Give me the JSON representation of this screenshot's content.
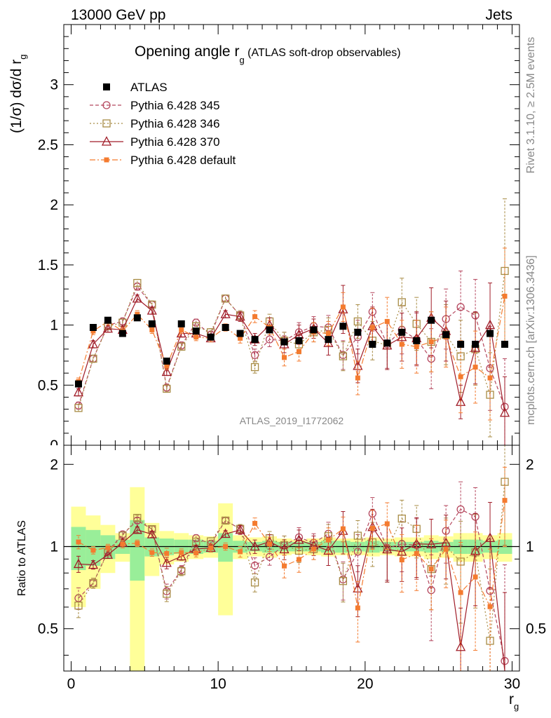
{
  "header": {
    "left": "13000 GeV pp",
    "right": "Jets"
  },
  "side": {
    "rivet": "Rivet 3.1.10, ≥ 2.5M events",
    "mcplots": "mcplots.cern.ch [arXiv:1306.3436]"
  },
  "top_panel": {
    "title_main": "Opening angle r",
    "title_sub": "g",
    "title_rest": " (ATLAS soft-drop observables)",
    "ylabel": "(1/σ) dσ/d r",
    "ylabel_sub": "g",
    "analysis_id": "ATLAS_2019_I1772062"
  },
  "bottom_panel": {
    "ylabel": "Ratio to ATLAS"
  },
  "xaxis": {
    "label": "r",
    "label_sub": "g"
  },
  "colors": {
    "atlas": "#000000",
    "p345": "#b5475e",
    "p346": "#a88c45",
    "p370": "#a01c28",
    "pdef": "#f47b2f",
    "band_yellow": "#ffff99",
    "band_green": "#99ee99"
  },
  "chart_data": {
    "type": "line",
    "x": [
      0.5,
      1.5,
      2.5,
      3.5,
      4.5,
      5.5,
      6.5,
      7.5,
      8.5,
      9.5,
      10.5,
      11.5,
      12.5,
      13.5,
      14.5,
      15.5,
      16.5,
      17.5,
      18.5,
      19.5,
      20.5,
      21.5,
      22.5,
      23.5,
      24.5,
      25.5,
      26.5,
      27.5,
      28.5,
      29.5
    ],
    "xlim": [
      -0.5,
      30.5
    ],
    "top_ylim": [
      0,
      3.5
    ],
    "top_yticks": [
      0.5,
      1,
      1.5,
      2,
      2.5,
      3
    ],
    "top_ytick_labels": [
      "0.5",
      "1",
      "1.5",
      "2",
      "2.5",
      "3"
    ],
    "bottom_ylim": [
      0.35,
      2.35
    ],
    "bottom_yticks": [
      0.5,
      1,
      2
    ],
    "bottom_ytick_labels": [
      "0.5",
      "1",
      "2"
    ],
    "xticks": [
      0,
      10,
      20,
      30
    ],
    "xtick_labels": [
      "0",
      "10",
      "20",
      "30"
    ],
    "data": {
      "name": "ATLAS",
      "values": [
        0.51,
        0.98,
        1.04,
        0.93,
        1.06,
        1.01,
        0.7,
        1.01,
        0.95,
        0.9,
        0.98,
        0.93,
        0.88,
        0.96,
        0.86,
        0.87,
        0.96,
        0.88,
        0.99,
        0.94,
        0.84,
        0.85,
        0.94,
        0.87,
        1.04,
        0.92,
        0.84,
        0.84,
        0.93,
        0.84
      ],
      "band_inner": [
        0.18,
        0.15,
        0.1,
        0.06,
        0.25,
        0.08,
        0.07,
        0.06,
        0.06,
        0.05,
        0.12,
        0.05,
        0.04,
        0.05,
        0.04,
        0.04,
        0.04,
        0.05,
        0.05,
        0.04,
        0.05,
        0.04,
        0.04,
        0.04,
        0.05,
        0.04,
        0.06,
        0.06,
        0.05,
        0.06
      ],
      "band_outer": [
        0.4,
        0.3,
        0.2,
        0.12,
        0.65,
        0.22,
        0.14,
        0.12,
        0.1,
        0.09,
        0.44,
        0.1,
        0.08,
        0.09,
        0.07,
        0.06,
        0.07,
        0.08,
        0.07,
        0.07,
        0.08,
        0.07,
        0.08,
        0.08,
        0.1,
        0.09,
        0.12,
        0.12,
        0.1,
        0.12
      ]
    },
    "series": [
      {
        "name": "Pythia 6.428 345",
        "marker": "circle",
        "values": [
          0.33,
          0.72,
          1.0,
          1.03,
          1.32,
          1.17,
          0.48,
          0.83,
          1.02,
          0.92,
          1.22,
          1.08,
          0.75,
          0.88,
          0.87,
          0.94,
          0.99,
          0.98,
          0.75,
          0.9,
          1.11,
          0.84,
          0.96,
          0.88,
          0.72,
          1.05,
          1.15,
          1.08,
          0.64,
          0.32
        ],
        "errors": [
          0.03,
          0.03,
          0.03,
          0.03,
          0.03,
          0.03,
          0.03,
          0.03,
          0.03,
          0.03,
          0.03,
          0.04,
          0.05,
          0.06,
          0.07,
          0.08,
          0.08,
          0.1,
          0.12,
          0.14,
          0.16,
          0.2,
          0.2,
          0.22,
          0.25,
          0.25,
          0.3,
          0.3,
          0.35,
          0.4
        ]
      },
      {
        "name": "Pythia 6.428 346",
        "marker": "square",
        "values": [
          0.31,
          0.72,
          0.99,
          1.02,
          1.35,
          1.17,
          0.47,
          0.82,
          0.99,
          0.94,
          1.22,
          1.08,
          0.65,
          1.03,
          0.87,
          0.84,
          0.94,
          0.96,
          0.74,
          1.03,
          0.87,
          0.83,
          1.19,
          1.01,
          0.86,
          0.92,
          0.74,
          0.8,
          0.42,
          1.45
        ],
        "errors": [
          0.03,
          0.03,
          0.03,
          0.03,
          0.03,
          0.03,
          0.03,
          0.03,
          0.03,
          0.03,
          0.03,
          0.04,
          0.05,
          0.06,
          0.07,
          0.08,
          0.08,
          0.1,
          0.12,
          0.14,
          0.16,
          0.2,
          0.2,
          0.22,
          0.25,
          0.25,
          0.3,
          0.3,
          0.35,
          0.6
        ]
      },
      {
        "name": "Pythia 6.428 370",
        "marker": "triangle",
        "values": [
          0.44,
          0.84,
          0.97,
          0.96,
          1.22,
          1.12,
          0.61,
          0.93,
          0.93,
          0.89,
          1.09,
          1.07,
          0.88,
          1.0,
          0.84,
          0.92,
          0.97,
          0.85,
          1.13,
          0.66,
          0.99,
          0.83,
          0.9,
          0.89,
          1.06,
          0.95,
          0.36,
          0.81,
          1.0,
          0.27
        ],
        "errors": [
          0.03,
          0.03,
          0.03,
          0.03,
          0.03,
          0.03,
          0.03,
          0.03,
          0.03,
          0.03,
          0.03,
          0.04,
          0.05,
          0.06,
          0.07,
          0.08,
          0.08,
          0.1,
          0.2,
          0.14,
          0.16,
          0.2,
          0.2,
          0.22,
          0.25,
          0.25,
          0.14,
          0.3,
          0.35,
          0.3
        ]
      },
      {
        "name": "Pythia 6.428 default",
        "marker": "filled-square",
        "values": [
          0.53,
          0.95,
          1.03,
          0.95,
          1.09,
          0.96,
          0.66,
          0.96,
          0.9,
          0.89,
          0.98,
          0.89,
          1.07,
          0.98,
          0.73,
          0.78,
          0.94,
          0.93,
          1.15,
          0.56,
          0.98,
          1.03,
          0.84,
          0.82,
          0.86,
          0.9,
          0.57,
          0.65,
          0.56,
          1.24
        ],
        "errors": [
          0.03,
          0.03,
          0.03,
          0.03,
          0.03,
          0.03,
          0.03,
          0.03,
          0.03,
          0.03,
          0.03,
          0.04,
          0.05,
          0.06,
          0.07,
          0.08,
          0.08,
          0.1,
          0.12,
          0.14,
          0.16,
          0.2,
          0.2,
          0.22,
          0.25,
          0.25,
          0.3,
          0.3,
          0.35,
          0.4
        ]
      }
    ]
  }
}
